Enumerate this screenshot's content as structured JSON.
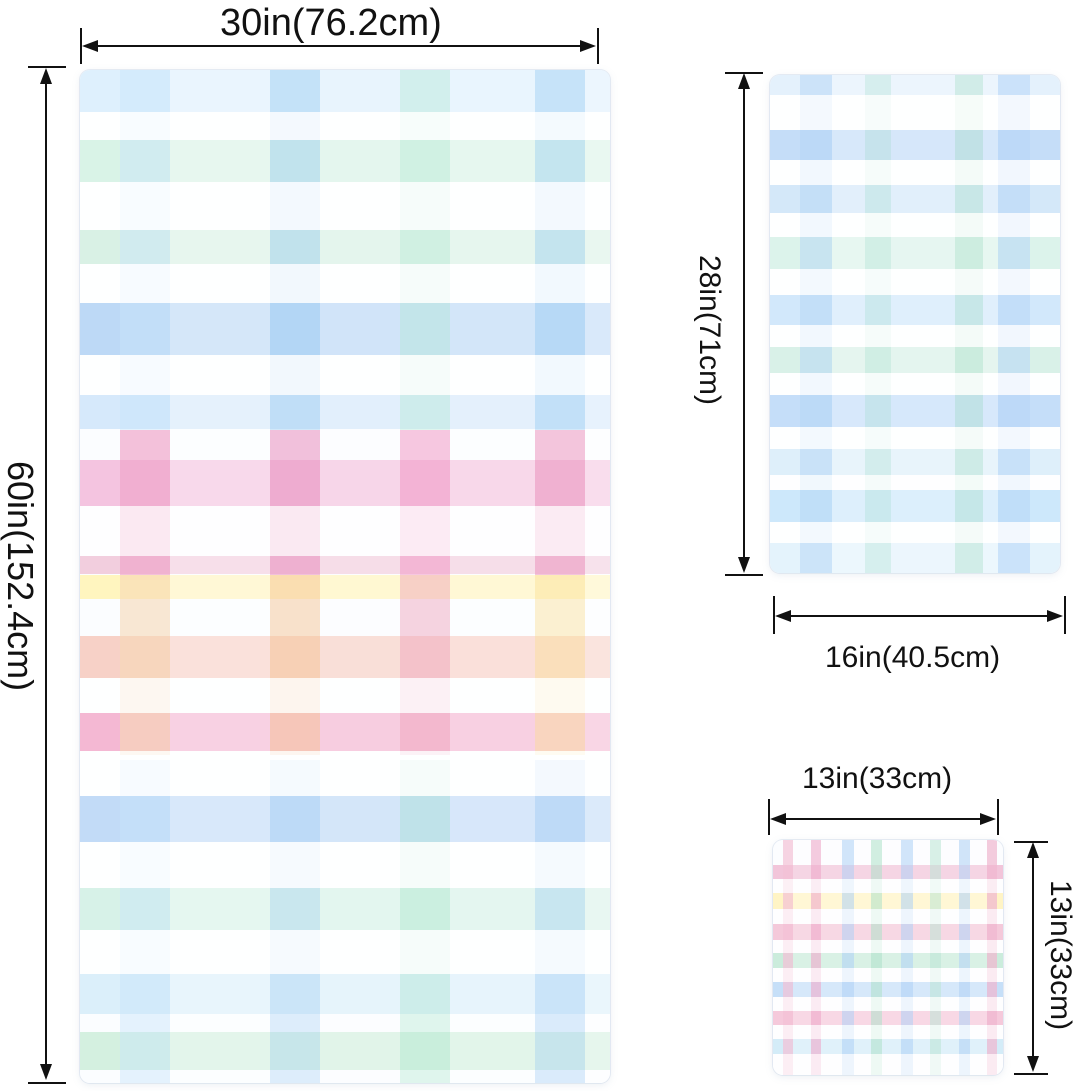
{
  "towels": {
    "bath": {
      "width_label": "30in(76.2cm)",
      "height_label": "60in(152.4cm)",
      "pattern": {
        "name": "pastel gingham",
        "color_bands": [
          "light-blue",
          "mint-green",
          "sky-blue",
          "pink",
          "peach",
          "yellow"
        ]
      }
    },
    "hand": {
      "width_label": "16in(40.5cm)",
      "height_label": "28in(71cm)",
      "pattern": {
        "name": "pastel gingham",
        "color_bands": [
          "light-blue",
          "mint-green",
          "sky-blue"
        ]
      }
    },
    "washcloth": {
      "width_label": "13in(33cm)",
      "height_label": "13in(33cm)",
      "pattern": {
        "name": "pastel gingham",
        "color_bands": [
          "pink",
          "peach",
          "mint-green",
          "sky-blue",
          "yellow"
        ]
      }
    }
  },
  "colors": {
    "pink": "#f2b6d3",
    "peach": "#f6d2c3",
    "yellow": "#fff0a8",
    "mint_green": "#bfe8d6",
    "sky_blue": "#b8d7f5",
    "light_blue": "#d9ecfb",
    "arrow": "#111111",
    "background": "#ffffff"
  }
}
